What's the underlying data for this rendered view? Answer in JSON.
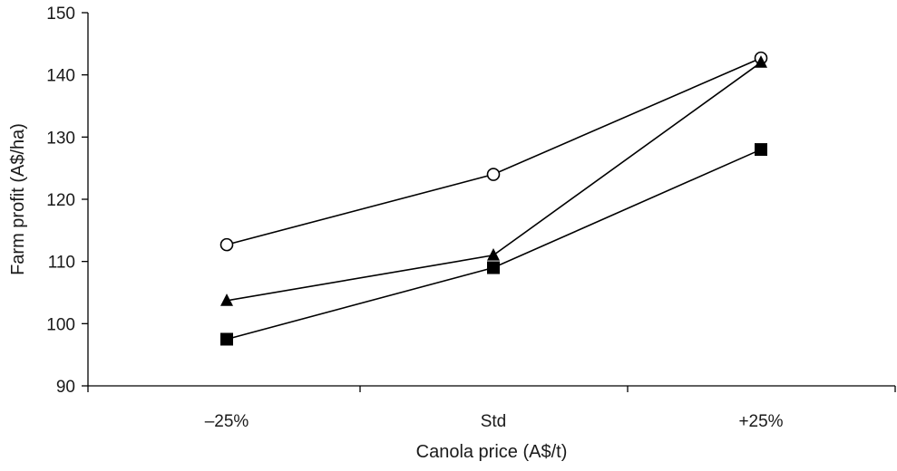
{
  "chart_data": {
    "type": "line",
    "categories": [
      "–25%",
      "Std",
      "+25%"
    ],
    "xlabel": "Canola price (A$/t)",
    "ylabel": "Farm profit (A$/ha)",
    "ylim": [
      90,
      150
    ],
    "yticks": [
      90,
      100,
      110,
      120,
      130,
      140,
      150
    ],
    "grid": false,
    "legend": "none",
    "series": [
      {
        "name": "open circle",
        "marker": "circle-open",
        "values": [
          112.7,
          124.0,
          142.7
        ]
      },
      {
        "name": "filled triangle",
        "marker": "triangle-filled",
        "values": [
          103.7,
          111.0,
          142.0
        ]
      },
      {
        "name": "filled square",
        "marker": "square-filled",
        "values": [
          97.5,
          109.0,
          128.0
        ]
      }
    ]
  },
  "colors": {
    "line": "#000000",
    "text": "#1a1a1a"
  }
}
